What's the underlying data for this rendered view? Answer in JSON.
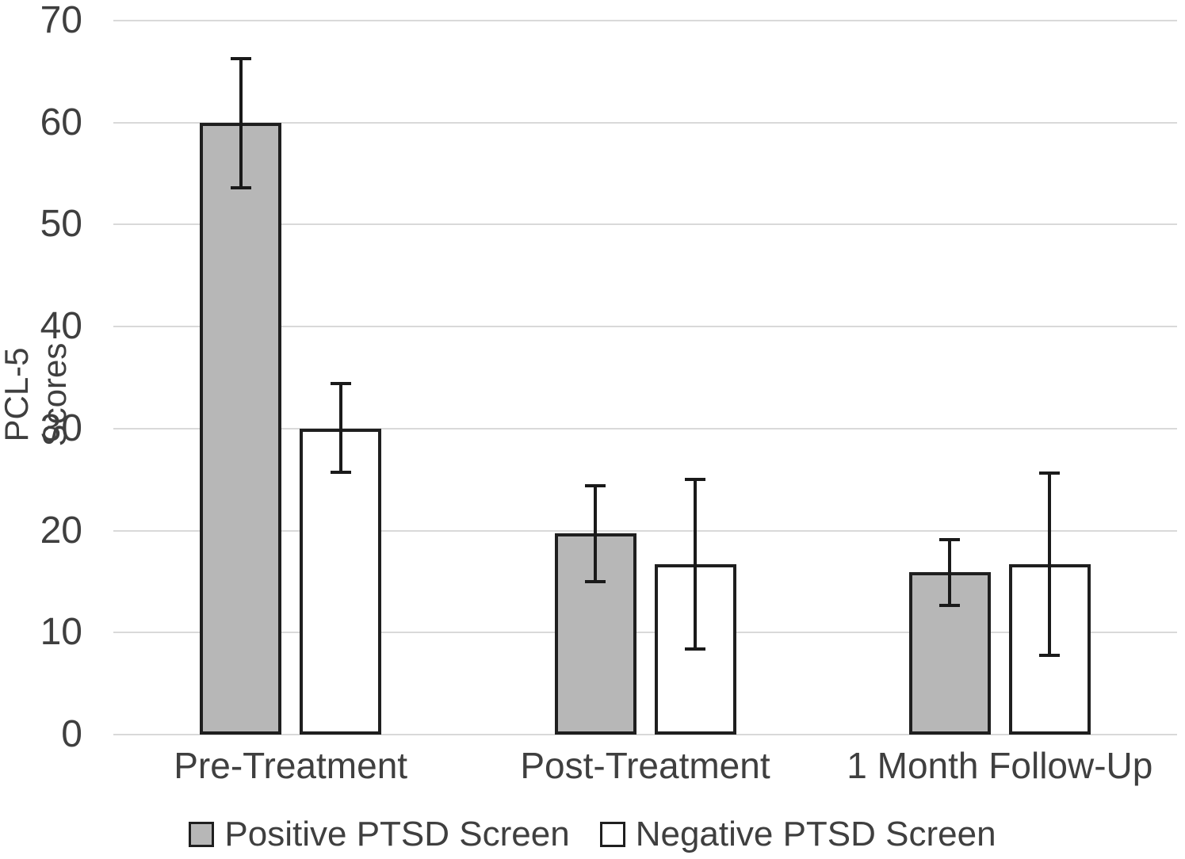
{
  "chart_data": {
    "type": "bar",
    "title": "",
    "xlabel": "",
    "ylabel": "PCL-5 Scores",
    "ylim": [
      0,
      70
    ],
    "yticks": [
      0,
      10,
      20,
      30,
      40,
      50,
      60,
      70
    ],
    "grid": "horizontal",
    "gridline_color": "#d9d9d9",
    "error_bar_color": "#1a1a1a",
    "bar_border_color": "#1f1f1f",
    "text_color": "#3f3f3f",
    "legend_position": "bottom",
    "categories": [
      "Pre-Treatment",
      "Post-Treatment",
      "1 Month Follow-Up"
    ],
    "series": [
      {
        "name": "Positive PTSD Screen",
        "fill": "#b7b7b7",
        "values": [
          60.0,
          19.7,
          15.9
        ],
        "error_upper": [
          66.3,
          24.4,
          19.1
        ],
        "error_lower": [
          53.6,
          15.0,
          12.7
        ]
      },
      {
        "name": "Negative PTSD Screen",
        "fill": "#ffffff",
        "values": [
          30.0,
          16.7,
          16.7
        ],
        "error_upper": [
          34.4,
          25.0,
          25.6
        ],
        "error_lower": [
          25.7,
          8.4,
          7.8
        ]
      }
    ]
  }
}
